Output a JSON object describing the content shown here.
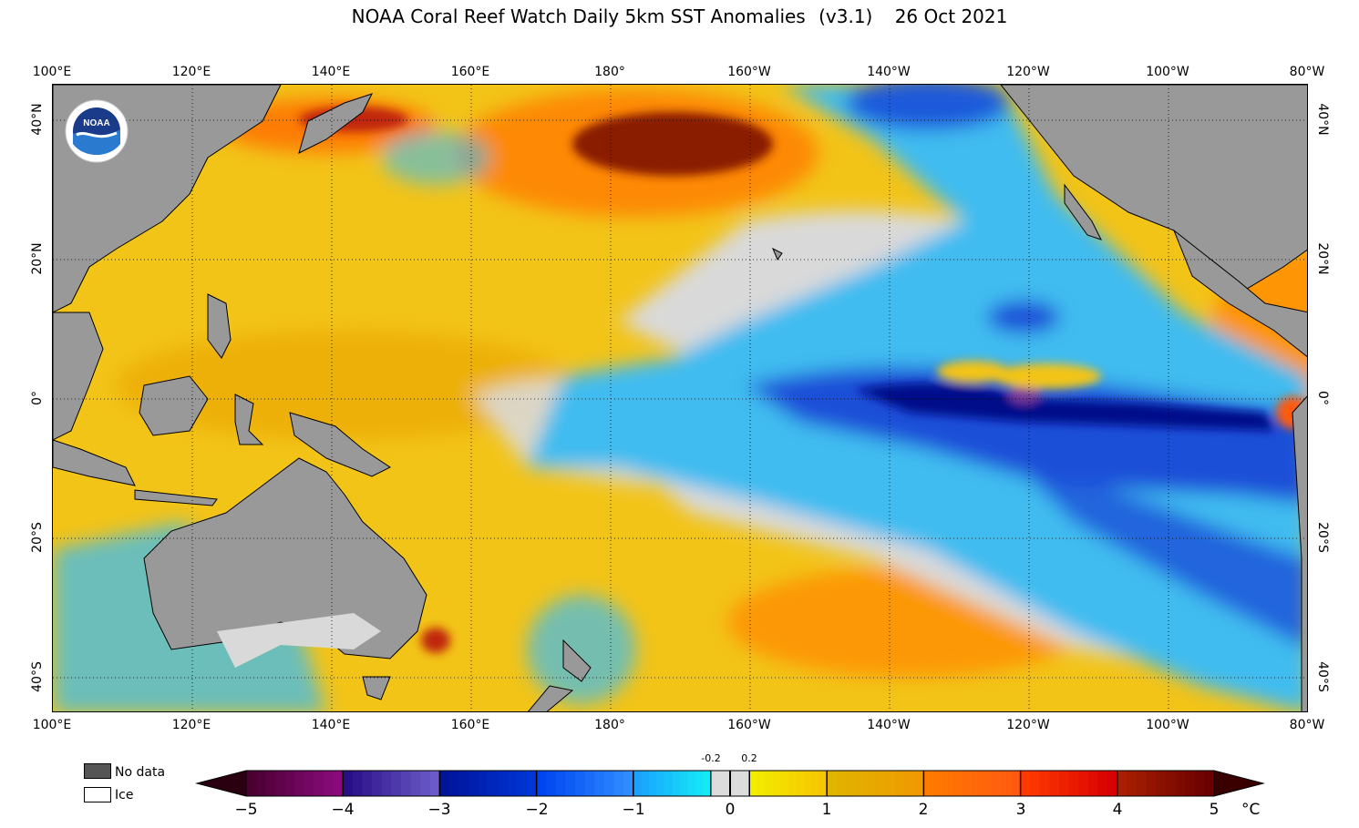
{
  "title": {
    "main": "NOAA Coral Reef Watch Daily 5km SST Anomalies",
    "version": "(v3.1)",
    "date": "26 Oct 2021"
  },
  "map": {
    "longitude_labels": [
      "100°E",
      "120°E",
      "140°E",
      "160°E",
      "180°",
      "160°W",
      "140°W",
      "120°W",
      "100°W",
      "80°W"
    ],
    "latitude_labels": [
      "40°N",
      "20°N",
      "0°",
      "20°S",
      "40°S"
    ],
    "colors": {
      "land": "#999999",
      "no_anomaly": "#d9d9d9",
      "warm": "#f3c418",
      "strong_warm": "#c0280a",
      "cool": "#3fbcf0",
      "strong_cool": "#0a2ab8"
    },
    "logo_text": "NOAA"
  },
  "legend": {
    "no_data": "No data",
    "ice": "Ice",
    "no_data_color": "#555555",
    "ice_color": "#ffffff"
  },
  "colorbar": {
    "ticks": [
      "−5",
      "−4",
      "−3",
      "−2",
      "−1",
      "0",
      "1",
      "2",
      "3",
      "4",
      "5"
    ],
    "inner_ticks": [
      "-0.2",
      "0.2"
    ],
    "unit": "°C",
    "segments": [
      {
        "from": -5,
        "to": -4,
        "colors": [
          "#4a0030",
          "#8a0a7e"
        ]
      },
      {
        "from": -4,
        "to": -3,
        "colors": [
          "#2a0e86",
          "#6a5bc8"
        ]
      },
      {
        "from": -3,
        "to": -2,
        "colors": [
          "#00149a",
          "#0036d6"
        ]
      },
      {
        "from": -2,
        "to": -1,
        "colors": [
          "#0044f0",
          "#2e8cff"
        ]
      },
      {
        "from": -1,
        "to": -0.2,
        "colors": [
          "#1aa2ff",
          "#14eaf6"
        ]
      },
      {
        "from": -0.2,
        "to": 0.2,
        "colors": [
          "#dcdcdc",
          "#dcdcdc"
        ]
      },
      {
        "from": 0.2,
        "to": 1,
        "colors": [
          "#f2ec00",
          "#f6c600"
        ]
      },
      {
        "from": 1,
        "to": 2,
        "colors": [
          "#e0b400",
          "#f09a00"
        ]
      },
      {
        "from": 2,
        "to": 3,
        "colors": [
          "#ff7a00",
          "#ff5a10"
        ]
      },
      {
        "from": 3,
        "to": 4,
        "colors": [
          "#ff3a00",
          "#d80000"
        ]
      },
      {
        "from": 4,
        "to": 5,
        "colors": [
          "#a82000",
          "#6a0000"
        ]
      }
    ],
    "min_color": "#2a0010",
    "max_color": "#3a0000"
  }
}
